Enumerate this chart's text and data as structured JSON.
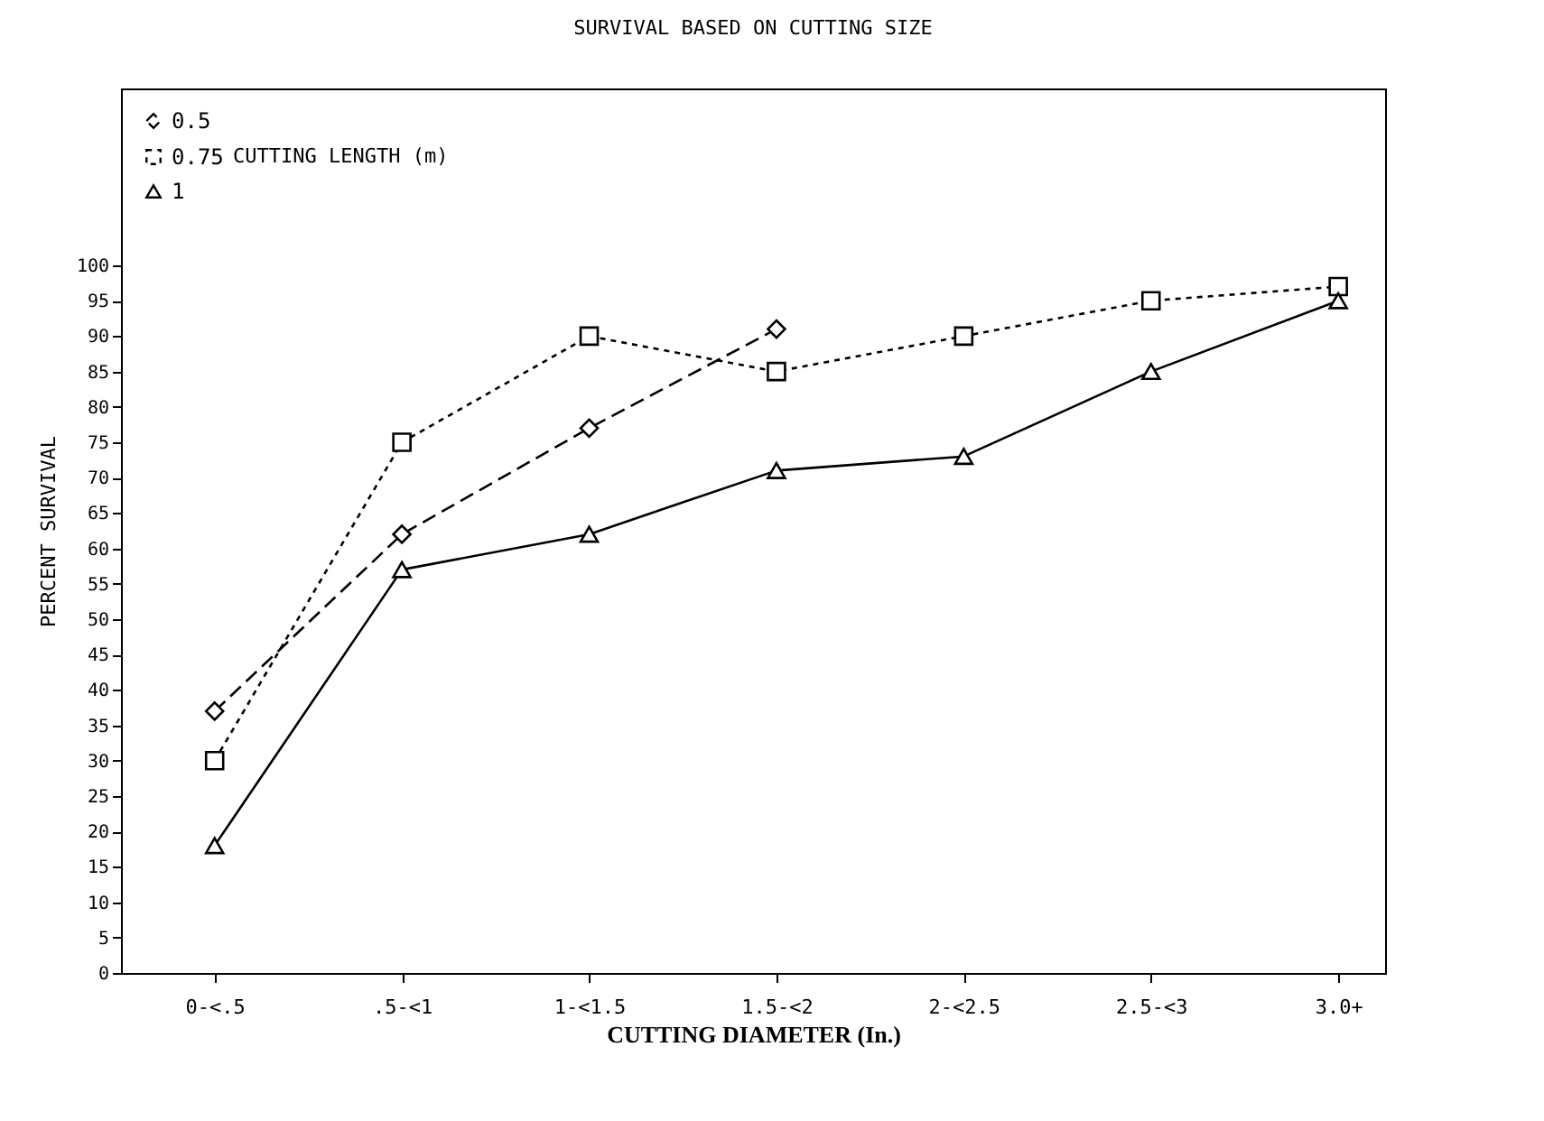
{
  "chart_data": {
    "type": "line",
    "title": "SURVIVAL BASED ON CUTTING SIZE",
    "xlabel": "CUTTING DIAMETER (In.)",
    "ylabel": "PERCENT SURVIVAL",
    "legend_title": "CUTTING LENGTH (m)",
    "legend": "top left",
    "categories": [
      "0-<.5",
      ".5-<1",
      "1-<1.5",
      "1.5-<2",
      "2-<2.5",
      "2.5-<3",
      "3.0+"
    ],
    "series": [
      {
        "name": "0.5",
        "color": "#000000",
        "marker": "diamond",
        "line_style": "dashed",
        "values": [
          37,
          62,
          77,
          91,
          null,
          null,
          null
        ]
      },
      {
        "name": "0.75",
        "color": "#000000",
        "marker": "square",
        "line_style": "dotted",
        "values": [
          30,
          75,
          90,
          85,
          90,
          95,
          97
        ]
      },
      {
        "name": "1",
        "color": "#000000",
        "marker": "triangle",
        "line_style": "solid",
        "values": [
          18,
          57,
          62,
          71,
          73,
          85,
          95
        ]
      }
    ],
    "ylim": [
      0,
      125
    ],
    "yticks": [
      0,
      5,
      10,
      15,
      20,
      25,
      30,
      35,
      40,
      45,
      50,
      55,
      60,
      65,
      70,
      75,
      80,
      85,
      90,
      95,
      100
    ],
    "grid": false
  }
}
